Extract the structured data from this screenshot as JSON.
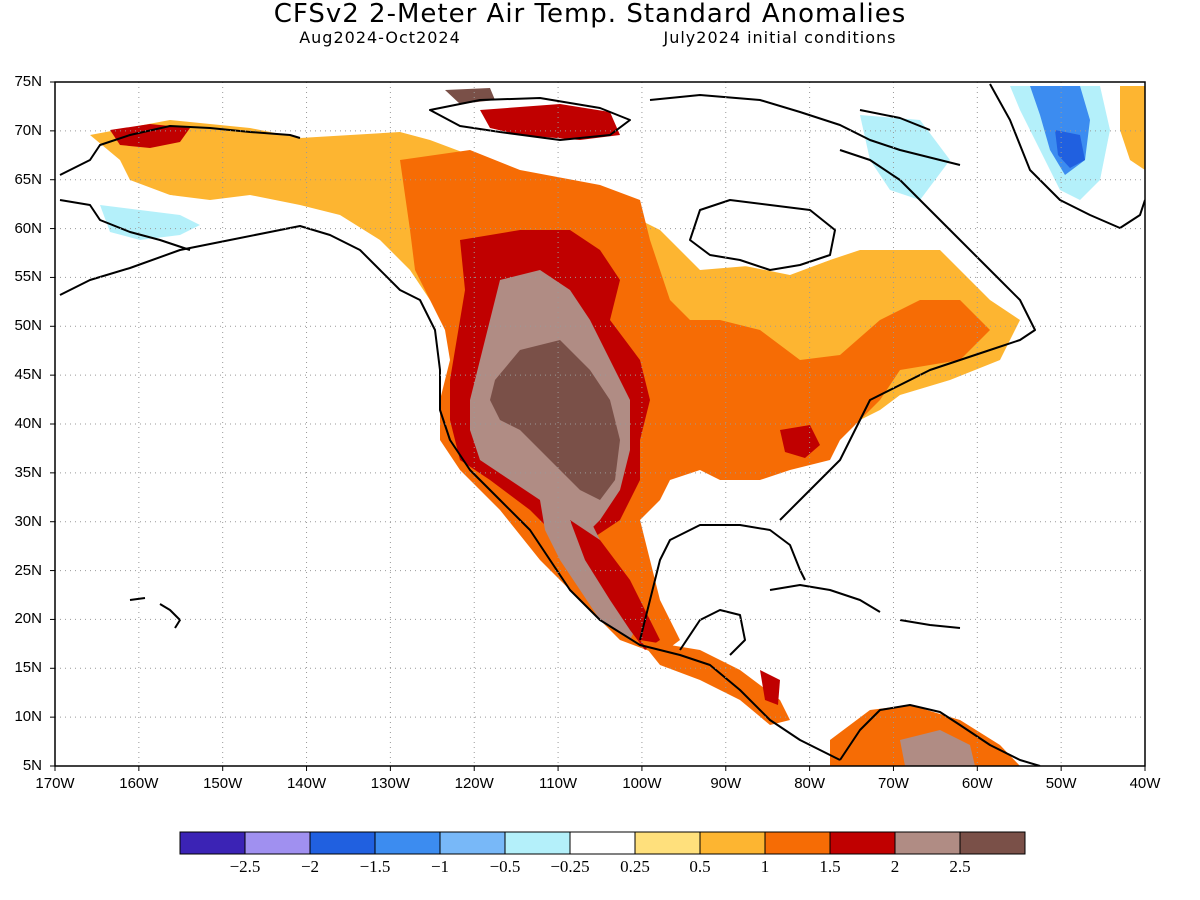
{
  "header": {
    "title": "CFSv2 2-Meter Air Temp. Standard Anomalies",
    "period": "Aug2024-Oct2024",
    "initial_conditions": "July2024 initial conditions"
  },
  "axes": {
    "lat_labels": [
      "75N",
      "70N",
      "65N",
      "60N",
      "55N",
      "50N",
      "45N",
      "40N",
      "35N",
      "30N",
      "25N",
      "20N",
      "15N",
      "10N",
      "5N"
    ],
    "lon_labels": [
      "170W",
      "160W",
      "150W",
      "140W",
      "130W",
      "120W",
      "110W",
      "100W",
      "90W",
      "80W",
      "70W",
      "60W",
      "50W",
      "40W"
    ]
  },
  "colorbar": {
    "colors": [
      "#3b23b5",
      "#a090f0",
      "#2060e0",
      "#3c8cf0",
      "#78b8f8",
      "#b4f0fa",
      "#ffffff",
      "#ffe07c",
      "#fdb531",
      "#f66c05",
      "#c00000",
      "#b08c84",
      "#7a5048"
    ],
    "labels": [
      "-2.5",
      "-2",
      "-1.5",
      "-1",
      "-0.5",
      "-0.25",
      "0.25",
      "0.5",
      "1",
      "1.5",
      "2",
      "2.5"
    ]
  },
  "map": {
    "projection": "cylindrical",
    "lon_range": [
      -170,
      -40
    ],
    "lat_range": [
      5,
      75
    ],
    "grid": "dotted",
    "regions": [
      {
        "name": "Southwest US maximum",
        "anomaly": "above 2.5"
      },
      {
        "name": "Northern Rockies / Prairies",
        "anomaly": "2 to 2.5"
      },
      {
        "name": "Eastern US",
        "anomaly": "1 to 1.5"
      },
      {
        "name": "Alaska interior",
        "anomaly": "-0.25 to -0.5"
      },
      {
        "name": "Greenland",
        "anomaly": "-0.5 to -1.5"
      },
      {
        "name": "Hudson Bay",
        "anomaly": "-0.25 to 0.25"
      }
    ]
  }
}
